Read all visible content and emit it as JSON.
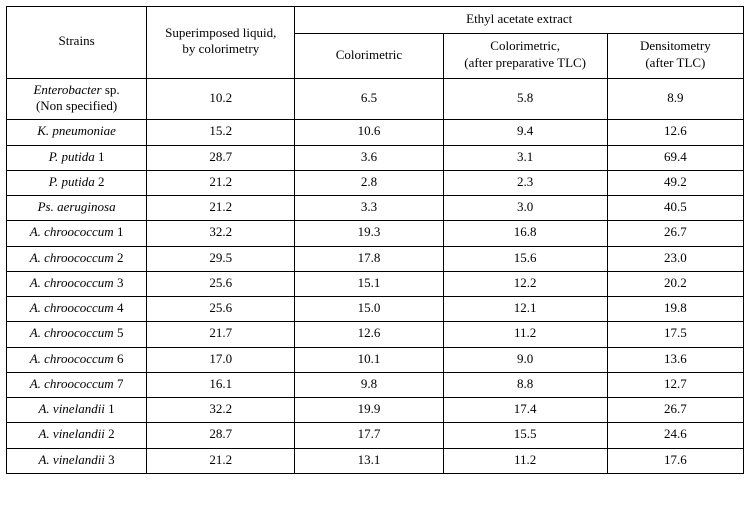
{
  "headers": {
    "strains": "Strains",
    "superimposed": "Superimposed liquid,\nby colorimetry",
    "ethyl_group": "Ethyl acetate extract",
    "sub_colorimetric": "Colorimetric",
    "sub_colorimetric_prep_a": "Colorimetric,",
    "sub_colorimetric_prep_b": "(after preparative TLC)",
    "sub_densitometry_a": "Densitometry",
    "sub_densitometry_b": "(after TLC)"
  },
  "rows": [
    {
      "strain_html": "<em>Enterobacter</em> sp.<br>(Non specified)",
      "b": "10.2",
      "c": "6.5",
      "d": "5.8",
      "e": "8.9"
    },
    {
      "strain_html": "<em>K. pneumoniae</em>",
      "b": "15.2",
      "c": "10.6",
      "d": "9.4",
      "e": "12.6"
    },
    {
      "strain_html": "<em>P. putida</em> 1",
      "b": "28.7",
      "c": "3.6",
      "d": "3.1",
      "e": "69.4"
    },
    {
      "strain_html": "<em>P. putida</em> 2",
      "b": "21.2",
      "c": "2.8",
      "d": "2.3",
      "e": "49.2"
    },
    {
      "strain_html": "<em>Ps. aeruginosa</em>",
      "b": "21.2",
      "c": "3.3",
      "d": "3.0",
      "e": "40.5"
    },
    {
      "strain_html": "<em>A. chroococcum</em> 1",
      "b": "32.2",
      "c": "19.3",
      "d": "16.8",
      "e": "26.7"
    },
    {
      "strain_html": "<em>A. chroococcum</em> 2",
      "b": "29.5",
      "c": "17.8",
      "d": "15.6",
      "e": "23.0"
    },
    {
      "strain_html": "<em>A. chroococcum</em> 3",
      "b": "25.6",
      "c": "15.1",
      "d": "12.2",
      "e": "20.2"
    },
    {
      "strain_html": "<em>A. chroococcum</em> 4",
      "b": "25.6",
      "c": "15.0",
      "d": "12.1",
      "e": "19.8"
    },
    {
      "strain_html": "<em>A. chroococcum</em> 5",
      "b": "21.7",
      "c": "12.6",
      "d": "11.2",
      "e": "17.5"
    },
    {
      "strain_html": "<em>A. chroococcum</em> 6",
      "b": "17.0",
      "c": "10.1",
      "d": "9.0",
      "e": "13.6"
    },
    {
      "strain_html": "<em>A. chroococcum</em> 7",
      "b": "16.1",
      "c": "9.8",
      "d": "8.8",
      "e": "12.7"
    },
    {
      "strain_html": "<em>A. vinelandii</em> 1",
      "b": "32.2",
      "c": "19.9",
      "d": "17.4",
      "e": "26.7"
    },
    {
      "strain_html": "<em>A. vinelandii</em> 2",
      "b": "28.7",
      "c": "17.7",
      "d": "15.5",
      "e": "24.6"
    },
    {
      "strain_html": "<em>A. vinelandii</em> 3",
      "b": "21.2",
      "c": "13.1",
      "d": "11.2",
      "e": "17.6"
    }
  ]
}
